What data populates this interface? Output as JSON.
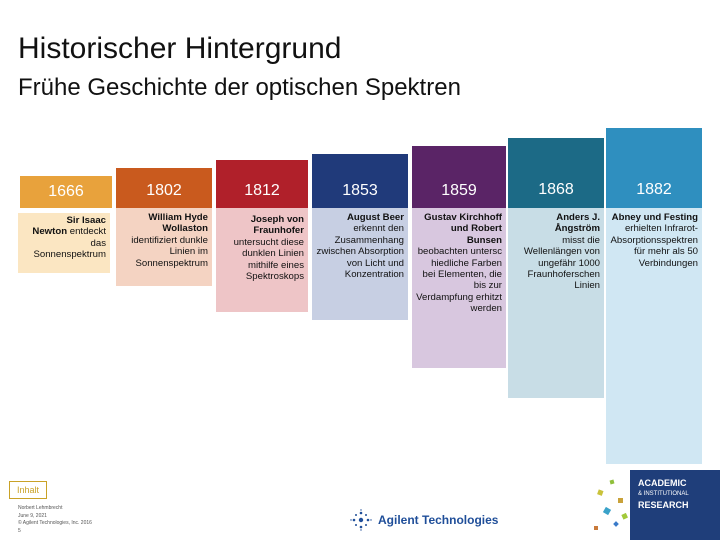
{
  "title": "Historischer Hintergrund",
  "subtitle": "Frühe Geschichte der optischen Spektren",
  "columns": [
    {
      "year": "1666",
      "color": "#e8a23c",
      "text_pre": "Sir Isaac",
      "bold1": "Newton",
      "rest": " entdeckt das Sonnenspektrum"
    },
    {
      "year": "1802",
      "color": "#c95a1e",
      "name": "William Hyde Wollaston",
      "rest": "identifiziert dunkle Linien im Sonnenspektrum"
    },
    {
      "year": "1812",
      "color": "#b0202a",
      "name": "Joseph von Fraunhofer",
      "rest": "untersucht diese dunklen Linien mithilfe eines Spektroskops"
    },
    {
      "year": "1853",
      "color": "#203a7a",
      "name": "August Beer",
      "rest": "erkennt den Zusammenhang zwischen Absorption von Licht und Konzentration"
    },
    {
      "year": "1859",
      "color": "#5a2466",
      "name": "Gustav Kirchhoff und Robert Bunsen",
      "rest": "beobachten untersc hiedliche Farben bei Elementen, die bis zur Verdampfung erhitzt werden"
    },
    {
      "year": "1868",
      "color": "#1c6a86",
      "name": "Anders J. Ångström",
      "rest": "misst die Wellenlängen von ungefähr 1000 Fraunhoferschen Linien"
    },
    {
      "year": "1882",
      "color": "#2f8fbf",
      "name": "Abney und Festing",
      "rest": "erhielten Infrarot-Absorptionsspektren für mehr als 50 Verbindungen"
    }
  ],
  "nav": {
    "inhalt": "Inhalt"
  },
  "footer": {
    "line1": "Norbert Lehmbrecht",
    "line2": "June 9, 2021",
    "line3": "© Agilent Technologies, Inc. 2016",
    "line4": "5"
  },
  "logos": {
    "agilent": "Agilent Technologies",
    "academic1": "ACADEMIC",
    "academic2": "& INSTITUTIONAL",
    "academic3": "RESEARCH"
  }
}
